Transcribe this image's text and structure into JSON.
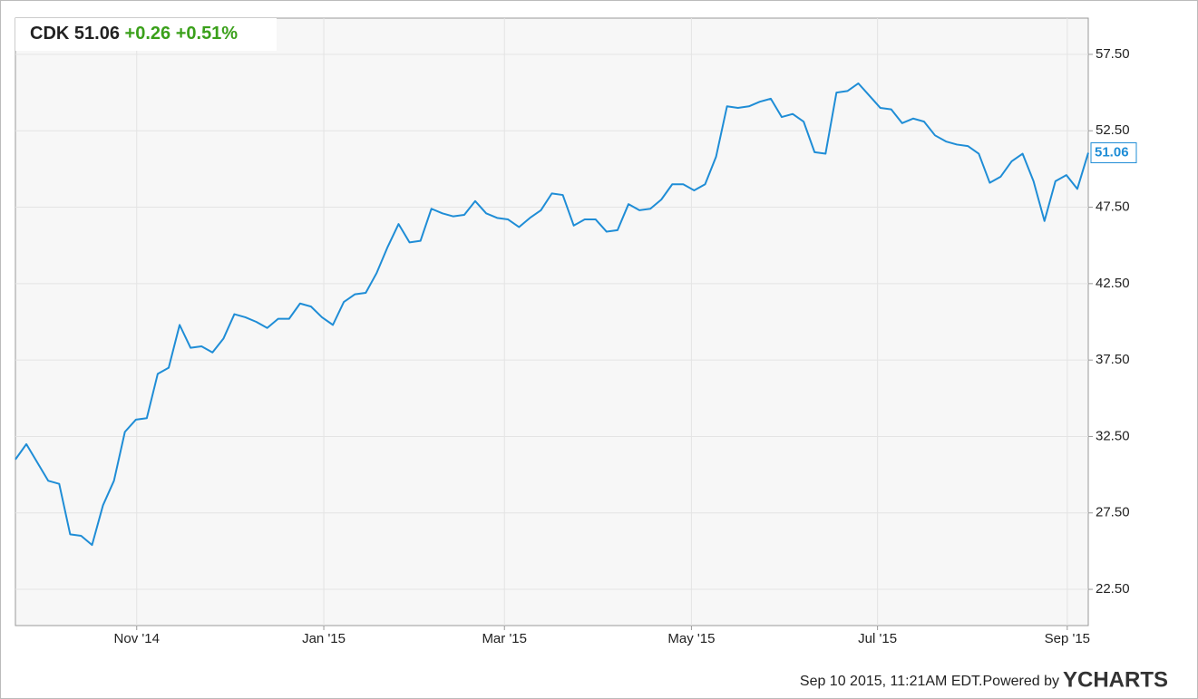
{
  "chart_data": {
    "type": "line",
    "ticker": "CDK",
    "change": {
      "value": 0.26,
      "label": "+0.26"
    },
    "change_pct": {
      "value": 0.51,
      "label": "+0.51%"
    },
    "timestamp": "Sep 10 2015, 11:21AM EDT.",
    "powered_by": "Powered by",
    "brand": "YCHARTS",
    "series": [
      {
        "name": "CDK",
        "color": "#1f8dd6",
        "values": [
          31.0,
          32.0,
          30.8,
          29.6,
          29.4,
          26.1,
          26.0,
          25.4,
          28.0,
          29.6,
          32.8,
          33.6,
          33.7,
          36.6,
          37.0,
          39.8,
          38.3,
          38.4,
          38.0,
          38.9,
          40.5,
          40.3,
          40.0,
          39.6,
          40.2,
          40.2,
          41.2,
          41.0,
          40.3,
          39.8,
          41.3,
          41.8,
          41.9,
          43.2,
          44.9,
          46.4,
          45.2,
          45.3,
          47.4,
          47.1,
          46.9,
          47.0,
          47.9,
          47.1,
          46.8,
          46.7,
          46.2,
          46.8,
          47.3,
          48.4,
          48.3,
          46.3,
          46.7,
          46.7,
          45.9,
          46.0,
          47.7,
          47.3,
          47.4,
          48.0,
          49.0,
          49.0,
          48.6,
          49.0,
          50.8,
          54.1,
          54.0,
          54.1,
          54.4,
          54.6,
          53.4,
          53.6,
          53.1,
          51.1,
          51.0,
          55.0,
          55.1,
          55.6,
          54.8,
          54.0,
          53.9,
          53.0,
          53.3,
          53.1,
          52.2,
          51.8,
          51.6,
          51.5,
          51.0,
          49.1,
          49.5,
          50.5,
          51.0,
          49.2,
          46.6,
          49.2,
          49.6,
          48.7,
          51.06
        ]
      }
    ],
    "xlim": [
      0,
      98
    ],
    "xticks": [
      {
        "value": 11.08,
        "label": "Nov '14"
      },
      {
        "value": 28.17,
        "label": "Jan '15"
      },
      {
        "value": 44.67,
        "label": "Mar '15"
      },
      {
        "value": 61.75,
        "label": "May '15"
      },
      {
        "value": 78.75,
        "label": "Jul '15"
      },
      {
        "value": 96.08,
        "label": "Sep '15"
      }
    ],
    "ylim": [
      20.13,
      59.87
    ],
    "yticks": [
      {
        "value": 22.5,
        "label": "22.50"
      },
      {
        "value": 27.5,
        "label": "27.50"
      },
      {
        "value": 32.5,
        "label": "32.50"
      },
      {
        "value": 37.5,
        "label": "37.50"
      },
      {
        "value": 42.5,
        "label": "42.50"
      },
      {
        "value": 47.5,
        "label": "47.50"
      },
      {
        "value": 52.5,
        "label": "52.50"
      },
      {
        "value": 57.5,
        "label": "57.50"
      }
    ],
    "grid": true
  }
}
